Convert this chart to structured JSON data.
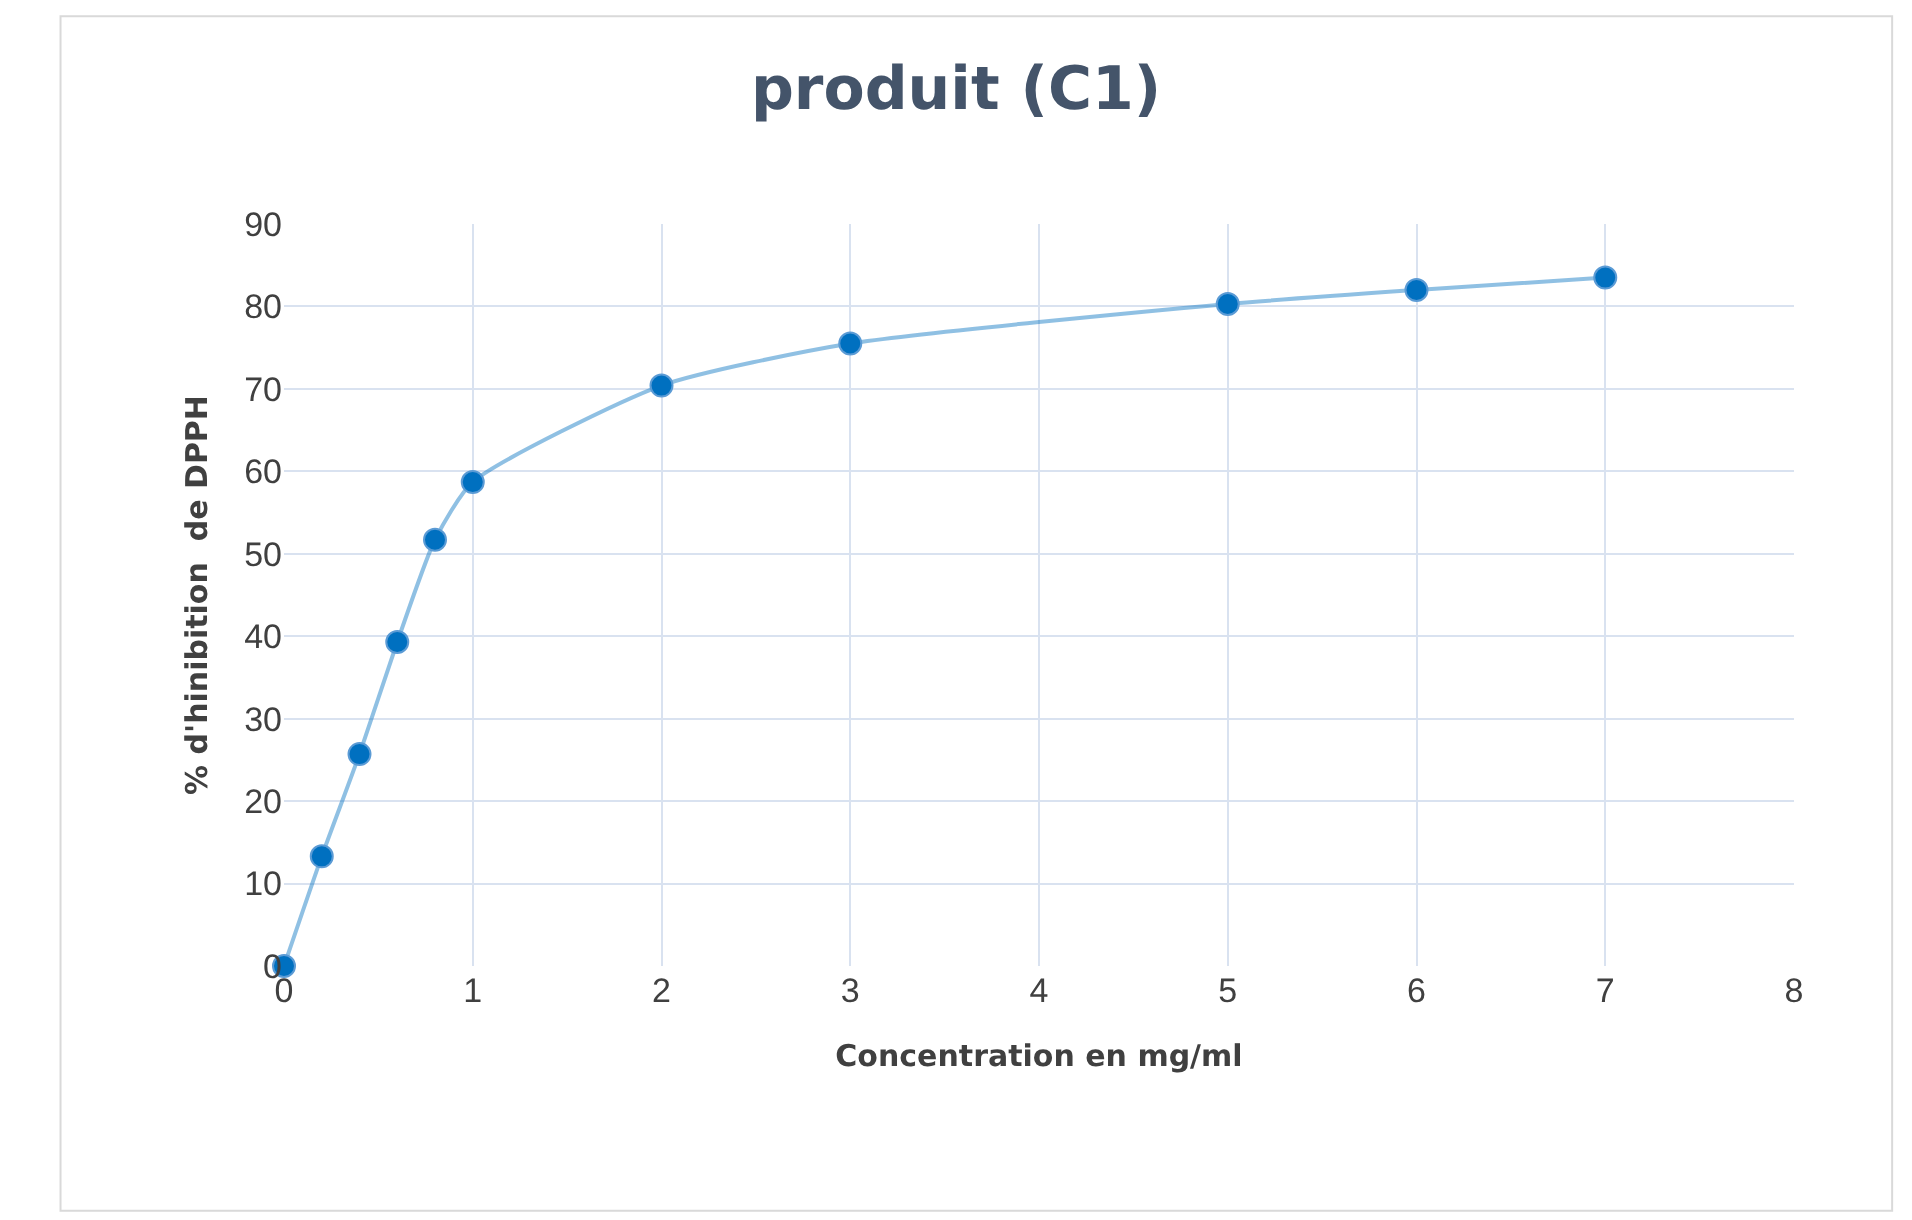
{
  "chart_data": {
    "type": "line",
    "title": "produit (C1)",
    "xlabel": "Concentration en mg/ml",
    "ylabel": "% d'hinibition  de DPPH",
    "x": [
      0,
      0.2,
      0.4,
      0.6,
      0.8,
      1,
      2,
      3,
      5,
      6,
      7
    ],
    "series": [
      {
        "color": "#0070c0",
        "values": [
          0,
          13.3,
          25.7,
          39.3,
          51.7,
          58.7,
          70.4,
          75.5,
          80.3,
          82,
          83.5
        ]
      }
    ],
    "xlim": [
      0,
      8
    ],
    "xticks": [
      0,
      1,
      2,
      3,
      4,
      5,
      6,
      7,
      8
    ],
    "ylim": [
      0,
      90
    ],
    "yticks": [
      0,
      10,
      20,
      30,
      40,
      50,
      60,
      70,
      80,
      90
    ],
    "grid": true,
    "legend": false,
    "marker": "circle",
    "line_style": "solid"
  }
}
